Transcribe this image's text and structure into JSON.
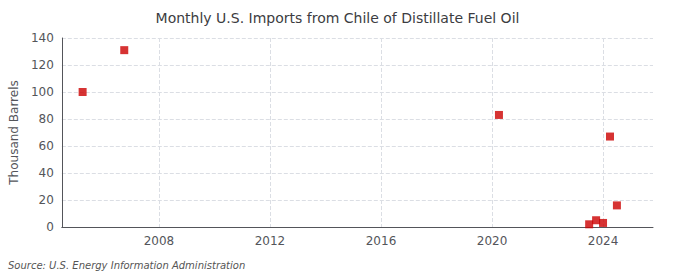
{
  "chart_data": {
    "type": "scatter",
    "title": "Monthly U.S. Imports from Chile of Distillate Fuel Oil",
    "ylabel": "Thousand Barrels",
    "source": "Source: U.S. Energy Information Administration",
    "x": [
      2005.25,
      2006.75,
      2020.25,
      2023.5,
      2023.75,
      2024.0,
      2024.25,
      2024.5
    ],
    "values": [
      100,
      131,
      83,
      2,
      5,
      3,
      67,
      16
    ],
    "color": "#cc0000",
    "marker": "square",
    "xlim": [
      2004.5,
      2025.8
    ],
    "xticks": [
      2008,
      2012,
      2016,
      2020,
      2024
    ],
    "ylim": [
      0,
      140
    ],
    "yticks": [
      0,
      20,
      40,
      60,
      80,
      100,
      120,
      140
    ],
    "grid": true
  }
}
